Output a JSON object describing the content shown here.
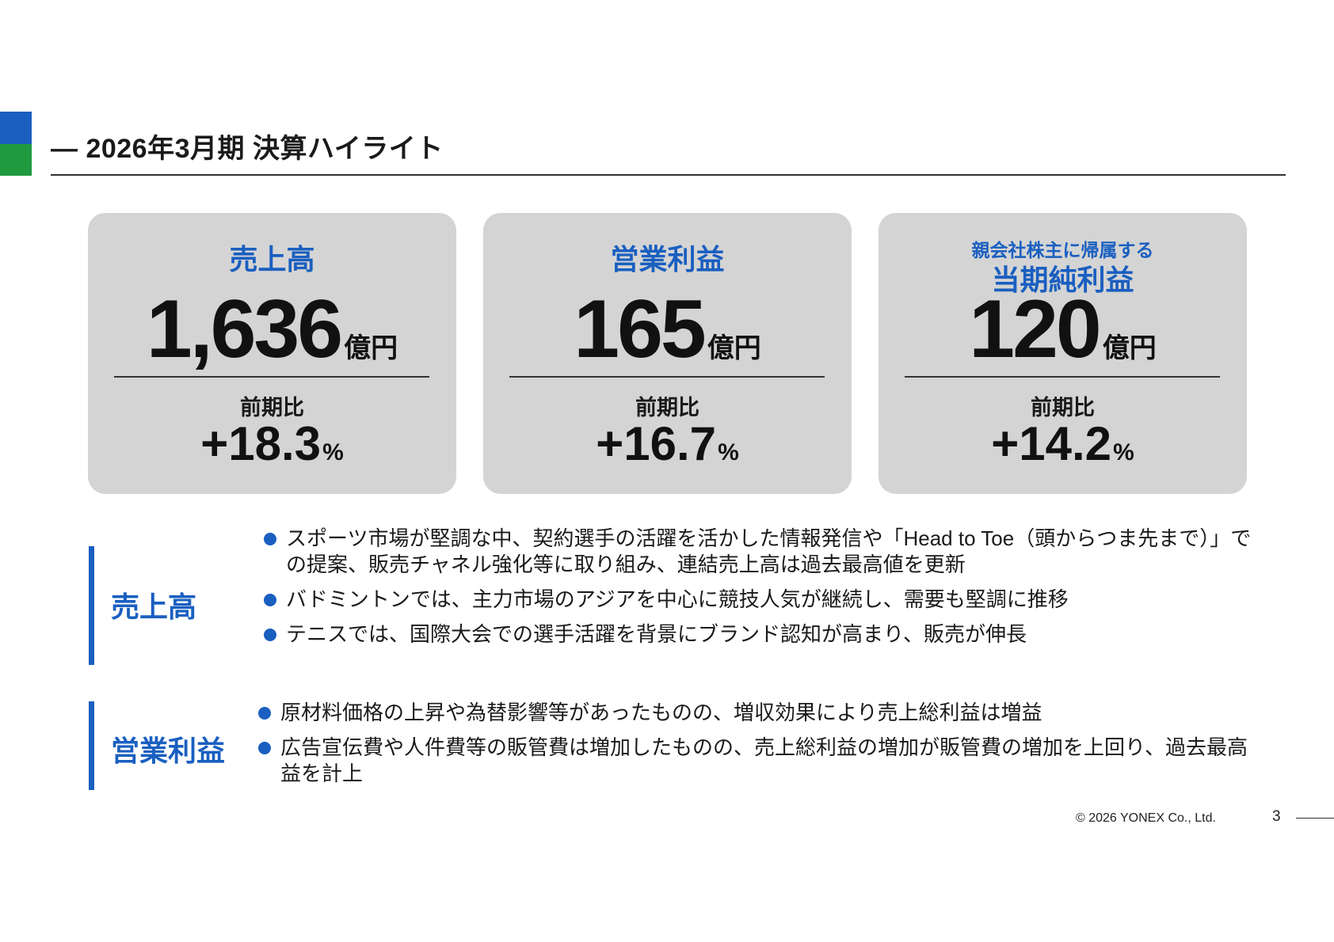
{
  "colors": {
    "brand_blue": "#1a5fc0",
    "brand_green": "#1f9a3f",
    "accent_blue": "#1a5fc0",
    "card_bg": "#d4d4d4"
  },
  "header": {
    "title": "— 2026年3月期 決算ハイライト"
  },
  "kpi_cards": [
    {
      "subtitle": "",
      "label": "売上高",
      "value": "1,636",
      "unit": "億円",
      "yoy_label": "前期比",
      "yoy_value": "+18.3",
      "yoy_unit": "%"
    },
    {
      "subtitle": "",
      "label": "営業利益",
      "value": "165",
      "unit": "億円",
      "yoy_label": "前期比",
      "yoy_value": "+16.7",
      "yoy_unit": "%"
    },
    {
      "subtitle": "親会社株主に帰属する",
      "label": "当期純利益",
      "value": "120",
      "unit": "億円",
      "yoy_label": "前期比",
      "yoy_value": "+14.2",
      "yoy_unit": "%"
    }
  ],
  "sections": [
    {
      "label": "売上高",
      "bullets": [
        "スポーツ市場が堅調な中、契約選手の活躍を活かした情報発信や「Head to Toe（頭からつま先まで）」での提案、販売チャネル強化等に取り組み、連結売上高は過去最高値を更新",
        "バドミントンでは、主力市場のアジアを中心に競技人気が継続し、需要も堅調に推移",
        "テニスでは、国際大会での選手活躍を背景にブランド認知が高まり、販売が伸長"
      ]
    },
    {
      "label": "営業利益",
      "bullets": [
        "原材料価格の上昇や為替影響等があったものの、増収効果により売上総利益は増益",
        "広告宣伝費や人件費等の販管費は増加したものの、売上総利益の増加が販管費の増加を上回り、過去最高益を計上"
      ]
    }
  ],
  "footer": {
    "copyright": "© 2026 YONEX Co., Ltd.",
    "page_number": "3"
  }
}
